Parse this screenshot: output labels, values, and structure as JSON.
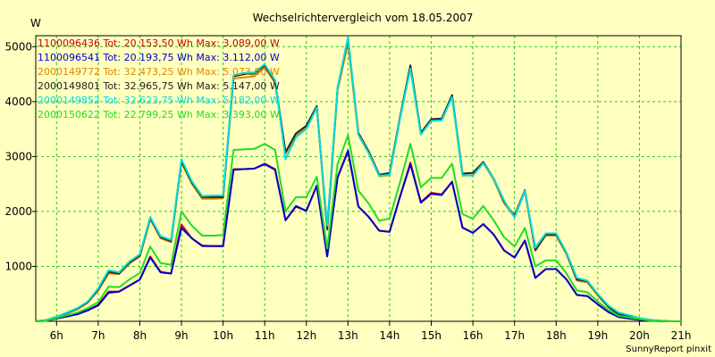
{
  "chart_data": {
    "type": "line",
    "title": "Wechselrichtervergleich vom 18.05.2007",
    "ylabel": "W",
    "xlabel": "",
    "credit": "SunnyReport pinxit",
    "ylim": [
      0,
      5200
    ],
    "yticks": [
      1000,
      2000,
      3000,
      4000,
      5000
    ],
    "xlim": [
      5.5,
      21.0
    ],
    "xticks": [
      {
        "v": 6,
        "label": "6h"
      },
      {
        "v": 7,
        "label": "7h"
      },
      {
        "v": 8,
        "label": "8h"
      },
      {
        "v": 9,
        "label": "9h"
      },
      {
        "v": 10,
        "label": "10h"
      },
      {
        "v": 11,
        "label": "11h"
      },
      {
        "v": 12,
        "label": "12h"
      },
      {
        "v": 13,
        "label": "13h"
      },
      {
        "v": 14,
        "label": "14h"
      },
      {
        "v": 15,
        "label": "15h"
      },
      {
        "v": 16,
        "label": "16h"
      },
      {
        "v": 17,
        "label": "17h"
      },
      {
        "v": 18,
        "label": "18h"
      },
      {
        "v": 19,
        "label": "19h"
      },
      {
        "v": 20,
        "label": "20h"
      },
      {
        "v": 21,
        "label": "21h"
      }
    ],
    "grid": true,
    "legend_position": "top-left",
    "x": [
      5.5,
      5.75,
      6.0,
      6.25,
      6.5,
      6.75,
      7.0,
      7.25,
      7.5,
      7.75,
      8.0,
      8.25,
      8.5,
      8.75,
      9.0,
      9.25,
      9.5,
      9.75,
      10.0,
      10.25,
      10.5,
      10.75,
      11.0,
      11.25,
      11.5,
      11.75,
      12.0,
      12.25,
      12.5,
      12.75,
      13.0,
      13.25,
      13.5,
      13.75,
      14.0,
      14.25,
      14.5,
      14.75,
      15.0,
      15.25,
      15.5,
      15.75,
      16.0,
      16.25,
      16.5,
      16.75,
      17.0,
      17.25,
      17.5,
      17.75,
      18.0,
      18.25,
      18.5,
      18.75,
      19.0,
      19.25,
      19.5,
      19.75,
      20.0,
      20.25,
      20.5,
      20.75,
      21.0
    ],
    "series": [
      {
        "name": "1100096436 Tot: 20.153,50 Wh Max: 3.089,00 W",
        "color": "#cc0000",
        "values": [
          0,
          10,
          50,
          90,
          130,
          200,
          300,
          540,
          540,
          650,
          760,
          1180,
          900,
          870,
          1760,
          1510,
          1380,
          1370,
          1370,
          2770,
          2770,
          2780,
          2870,
          2770,
          1840,
          2090,
          2010,
          2470,
          1190,
          2620,
          3090,
          2090,
          1900,
          1650,
          1630,
          2270,
          2890,
          2170,
          2340,
          2310,
          2540,
          1700,
          1610,
          1770,
          1580,
          1290,
          1160,
          1470,
          790,
          950,
          950,
          760,
          480,
          460,
          310,
          170,
          80,
          50,
          30,
          10,
          5,
          0,
          0
        ]
      },
      {
        "name": "1100096541 Tot: 20.193,75 Wh Max: 3.112,00 W",
        "color": "#0000cc",
        "values": [
          0,
          10,
          50,
          90,
          130,
          200,
          290,
          520,
          540,
          650,
          760,
          1160,
          890,
          870,
          1700,
          1510,
          1370,
          1370,
          1370,
          2760,
          2770,
          2780,
          2860,
          2760,
          1840,
          2100,
          2010,
          2470,
          1180,
          2620,
          3110,
          2090,
          1900,
          1650,
          1630,
          2270,
          2860,
          2160,
          2320,
          2300,
          2540,
          1710,
          1610,
          1770,
          1580,
          1290,
          1160,
          1470,
          790,
          950,
          950,
          760,
          480,
          460,
          310,
          170,
          80,
          50,
          30,
          10,
          5,
          0,
          0
        ]
      },
      {
        "name": "2000149772 Tot: 32.473,25 Wh Max: 5.073,00 W",
        "color": "#dd8800",
        "values": [
          0,
          20,
          80,
          150,
          220,
          340,
          560,
          870,
          860,
          1050,
          1180,
          1860,
          1510,
          1440,
          2890,
          2500,
          2230,
          2230,
          2240,
          4420,
          4440,
          4460,
          4620,
          4340,
          3050,
          3380,
          3540,
          3900,
          1660,
          4200,
          5070,
          3390,
          3060,
          2640,
          2660,
          3690,
          4630,
          3410,
          3650,
          3660,
          4090,
          2650,
          2660,
          2880,
          2580,
          2150,
          1900,
          2360,
          1280,
          1560,
          1560,
          1220,
          740,
          710,
          470,
          260,
          120,
          90,
          50,
          20,
          10,
          0,
          0
        ]
      },
      {
        "name": "2000149801 Tot: 32.965,75 Wh Max: 5.147,00 W",
        "color": "#222222",
        "values": [
          0,
          20,
          80,
          150,
          230,
          350,
          580,
          900,
          870,
          1070,
          1200,
          1880,
          1530,
          1460,
          2920,
          2530,
          2260,
          2260,
          2260,
          4460,
          4500,
          4510,
          4660,
          4370,
          3080,
          3420,
          3560,
          3920,
          1680,
          4250,
          5150,
          3430,
          3090,
          2670,
          2700,
          3720,
          4660,
          3430,
          3680,
          3690,
          4120,
          2690,
          2700,
          2900,
          2600,
          2180,
          1920,
          2390,
          1300,
          1580,
          1580,
          1240,
          760,
          730,
          490,
          270,
          130,
          90,
          50,
          20,
          10,
          0,
          0
        ]
      },
      {
        "name": "2000149852 Tot: 32.623,75 Wh Max: 5.182,00 W",
        "color": "#00dddd",
        "values": [
          0,
          20,
          80,
          160,
          240,
          360,
          600,
          930,
          890,
          1090,
          1220,
          1900,
          1550,
          1480,
          2950,
          2550,
          2280,
          2290,
          2290,
          4480,
          4520,
          4530,
          4680,
          4390,
          2950,
          3350,
          3500,
          3890,
          1740,
          4250,
          5180,
          3400,
          3060,
          2650,
          2670,
          3690,
          4600,
          3400,
          3650,
          3660,
          4080,
          2660,
          2650,
          2880,
          2600,
          2200,
          1890,
          2380,
          1340,
          1600,
          1600,
          1250,
          790,
          740,
          500,
          290,
          160,
          110,
          60,
          30,
          10,
          0,
          0
        ]
      },
      {
        "name": "2000150622 Tot: 22.799,25 Wh Max: 3.393,00 W",
        "color": "#22dd22",
        "values": [
          0,
          10,
          60,
          110,
          160,
          240,
          350,
          630,
          620,
          760,
          880,
          1360,
          1060,
          1030,
          2000,
          1740,
          1560,
          1560,
          1570,
          3120,
          3130,
          3140,
          3230,
          3120,
          2000,
          2260,
          2260,
          2630,
          1330,
          2860,
          3390,
          2380,
          2140,
          1830,
          1870,
          2530,
          3230,
          2440,
          2610,
          2610,
          2870,
          1950,
          1870,
          2100,
          1840,
          1530,
          1360,
          1700,
          1000,
          1110,
          1110,
          870,
          560,
          530,
          360,
          210,
          100,
          70,
          40,
          15,
          5,
          0,
          0
        ]
      }
    ]
  }
}
